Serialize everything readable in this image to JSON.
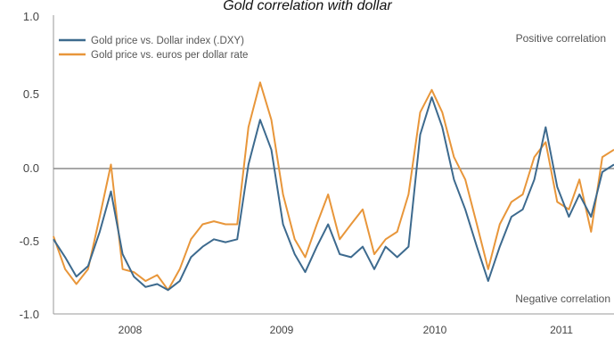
{
  "chart_data": {
    "type": "line",
    "title": "Gold correlation with dollar",
    "xlabel": "",
    "ylabel": "",
    "x_tick_labels": [
      "2008",
      "2009",
      "2010",
      "2011"
    ],
    "y_tick_labels": [
      "1.0",
      "0.5",
      "0.0",
      "-0.5",
      "-1.0"
    ],
    "ylim": [
      -1.0,
      1.0
    ],
    "xlim": [
      "2007-05",
      "2011-06"
    ],
    "grid": false,
    "legend_position": "top-left",
    "annotations": {
      "top_right": "Positive correlation",
      "bottom_right": "Negative correlation"
    },
    "series": [
      {
        "name": "Gold price vs. Dollar index (.DXY)",
        "color": "#3d6a8e",
        "points": [
          [
            "2007-05-01",
            -0.5
          ],
          [
            "2007-06-01",
            -0.62
          ],
          [
            "2007-07-01",
            -0.75
          ],
          [
            "2007-08-01",
            -0.68
          ],
          [
            "2007-09-01",
            -0.45
          ],
          [
            "2007-10-01",
            -0.18
          ],
          [
            "2007-11-01",
            -0.6
          ],
          [
            "2007-12-01",
            -0.75
          ],
          [
            "2008-01-01",
            -0.82
          ],
          [
            "2008-02-01",
            -0.8
          ],
          [
            "2008-03-01",
            -0.84
          ],
          [
            "2008-04-01",
            -0.78
          ],
          [
            "2008-05-01",
            -0.62
          ],
          [
            "2008-06-01",
            -0.55
          ],
          [
            "2008-07-01",
            -0.5
          ],
          [
            "2008-08-01",
            -0.52
          ],
          [
            "2008-09-01",
            -0.5
          ],
          [
            "2008-10-01",
            0.0
          ],
          [
            "2008-11-01",
            0.3
          ],
          [
            "2008-12-01",
            0.1
          ],
          [
            "2009-01-01",
            -0.4
          ],
          [
            "2009-02-01",
            -0.6
          ],
          [
            "2009-03-01",
            -0.72
          ],
          [
            "2009-04-01",
            -0.55
          ],
          [
            "2009-05-01",
            -0.4
          ],
          [
            "2009-06-01",
            -0.6
          ],
          [
            "2009-07-01",
            -0.62
          ],
          [
            "2009-08-01",
            -0.55
          ],
          [
            "2009-09-01",
            -0.7
          ],
          [
            "2009-10-01",
            -0.55
          ],
          [
            "2009-11-01",
            -0.62
          ],
          [
            "2009-12-01",
            -0.55
          ],
          [
            "2010-01-01",
            0.2
          ],
          [
            "2010-02-01",
            0.45
          ],
          [
            "2010-03-01",
            0.25
          ],
          [
            "2010-04-01",
            -0.1
          ],
          [
            "2010-05-01",
            -0.3
          ],
          [
            "2010-06-01",
            -0.55
          ],
          [
            "2010-07-01",
            -0.78
          ],
          [
            "2010-08-01",
            -0.55
          ],
          [
            "2010-09-01",
            -0.35
          ],
          [
            "2010-10-01",
            -0.3
          ],
          [
            "2010-11-01",
            -0.1
          ],
          [
            "2010-12-01",
            0.25
          ],
          [
            "2011-01-01",
            -0.15
          ],
          [
            "2011-02-01",
            -0.35
          ],
          [
            "2011-03-01",
            -0.2
          ],
          [
            "2011-04-01",
            -0.35
          ],
          [
            "2011-05-01",
            -0.05
          ],
          [
            "2011-06-01",
            0.0
          ]
        ]
      },
      {
        "name": "Gold price vs. euros per dollar rate",
        "color": "#e8963a",
        "points": [
          [
            "2007-05-01",
            -0.48
          ],
          [
            "2007-06-01",
            -0.7
          ],
          [
            "2007-07-01",
            -0.8
          ],
          [
            "2007-08-01",
            -0.7
          ],
          [
            "2007-09-01",
            -0.35
          ],
          [
            "2007-10-01",
            0.0
          ],
          [
            "2007-11-01",
            -0.7
          ],
          [
            "2007-12-01",
            -0.72
          ],
          [
            "2008-01-01",
            -0.78
          ],
          [
            "2008-02-01",
            -0.74
          ],
          [
            "2008-03-01",
            -0.84
          ],
          [
            "2008-04-01",
            -0.7
          ],
          [
            "2008-05-01",
            -0.5
          ],
          [
            "2008-06-01",
            -0.4
          ],
          [
            "2008-07-01",
            -0.38
          ],
          [
            "2008-08-01",
            -0.4
          ],
          [
            "2008-09-01",
            -0.4
          ],
          [
            "2008-10-01",
            0.25
          ],
          [
            "2008-11-01",
            0.55
          ],
          [
            "2008-12-01",
            0.3
          ],
          [
            "2009-01-01",
            -0.2
          ],
          [
            "2009-02-01",
            -0.5
          ],
          [
            "2009-03-01",
            -0.62
          ],
          [
            "2009-04-01",
            -0.4
          ],
          [
            "2009-05-01",
            -0.2
          ],
          [
            "2009-06-01",
            -0.5
          ],
          [
            "2009-07-01",
            -0.4
          ],
          [
            "2009-08-01",
            -0.3
          ],
          [
            "2009-09-01",
            -0.6
          ],
          [
            "2009-10-01",
            -0.5
          ],
          [
            "2009-11-01",
            -0.45
          ],
          [
            "2009-12-01",
            -0.2
          ],
          [
            "2010-01-01",
            0.35
          ],
          [
            "2010-02-01",
            0.5
          ],
          [
            "2010-03-01",
            0.35
          ],
          [
            "2010-04-01",
            0.05
          ],
          [
            "2010-05-01",
            -0.1
          ],
          [
            "2010-06-01",
            -0.4
          ],
          [
            "2010-07-01",
            -0.7
          ],
          [
            "2010-08-01",
            -0.4
          ],
          [
            "2010-09-01",
            -0.25
          ],
          [
            "2010-10-01",
            -0.2
          ],
          [
            "2010-11-01",
            0.05
          ],
          [
            "2010-12-01",
            0.15
          ],
          [
            "2011-01-01",
            -0.25
          ],
          [
            "2011-02-01",
            -0.3
          ],
          [
            "2011-03-01",
            -0.1
          ],
          [
            "2011-04-01",
            -0.45
          ],
          [
            "2011-05-01",
            0.05
          ],
          [
            "2011-06-01",
            0.1
          ]
        ]
      }
    ]
  }
}
